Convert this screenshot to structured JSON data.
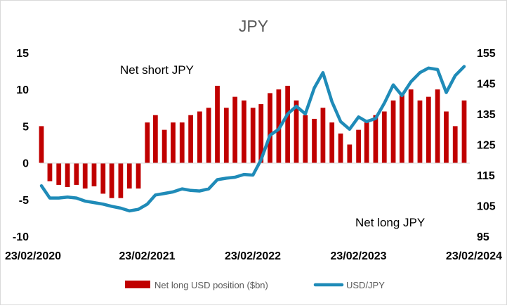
{
  "chart_data": {
    "type": "bar+line",
    "title": "JPY",
    "annotations": [
      "Net short JPY",
      "Net long JPY"
    ],
    "x_tick_labels": [
      "23/02/2020",
      "23/02/2021",
      "23/02/2022",
      "23/02/2023",
      "23/02/2024"
    ],
    "y_left": {
      "ticks": [
        15,
        10,
        5,
        0,
        -5,
        -10
      ],
      "range": [
        -10,
        15
      ]
    },
    "y_right": {
      "ticks": [
        155,
        145,
        135,
        125,
        115,
        105,
        95
      ],
      "range": [
        95,
        155
      ]
    },
    "legend": {
      "position": "bottom",
      "items": [
        "Net long USD position ($bn)",
        "USD/JPY"
      ]
    },
    "colors": {
      "bars": "#C00000",
      "line": "#1F8BB8",
      "title": "#595959"
    },
    "series": [
      {
        "name": "Net long USD position ($bn)",
        "axis": "left",
        "type": "bar",
        "dates": [
          "2020-02",
          "2020-03",
          "2020-04",
          "2020-05",
          "2020-06",
          "2020-07",
          "2020-08",
          "2020-09",
          "2020-10",
          "2020-11",
          "2020-12",
          "2021-01",
          "2021-02",
          "2021-03",
          "2021-04",
          "2021-05",
          "2021-06",
          "2021-07",
          "2021-08",
          "2021-09",
          "2021-10",
          "2021-11",
          "2021-12",
          "2022-01",
          "2022-02",
          "2022-03",
          "2022-04",
          "2022-05",
          "2022-06",
          "2022-07",
          "2022-08",
          "2022-09",
          "2022-10",
          "2022-11",
          "2022-12",
          "2023-01",
          "2023-02",
          "2023-03",
          "2023-04",
          "2023-05",
          "2023-06",
          "2023-07",
          "2023-08",
          "2023-09",
          "2023-10",
          "2023-11",
          "2023-12",
          "2024-01",
          "2024-02"
        ],
        "values": [
          5.0,
          -2.5,
          -3.0,
          -3.3,
          -3.0,
          -3.5,
          -3.2,
          -4.2,
          -4.8,
          -4.8,
          -3.5,
          -3.5,
          5.5,
          6.5,
          4.5,
          5.5,
          5.5,
          6.5,
          7.0,
          7.5,
          10.5,
          7.5,
          9.0,
          8.5,
          7.5,
          8.0,
          9.5,
          10.0,
          10.5,
          8.5,
          6.5,
          6.0,
          7.5,
          5.5,
          4.0,
          2.5,
          4.5,
          5.5,
          6.5,
          7.0,
          8.5,
          9.5,
          10.0,
          8.5,
          9.0,
          10.0,
          7.0,
          5.0,
          8.5
        ]
      },
      {
        "name": "USD/JPY",
        "axis": "right",
        "type": "line",
        "dates": [
          "2020-02",
          "2020-03",
          "2020-04",
          "2020-05",
          "2020-06",
          "2020-07",
          "2020-08",
          "2020-09",
          "2020-10",
          "2020-11",
          "2020-12",
          "2021-01",
          "2021-02",
          "2021-03",
          "2021-04",
          "2021-05",
          "2021-06",
          "2021-07",
          "2021-08",
          "2021-09",
          "2021-10",
          "2021-11",
          "2021-12",
          "2022-01",
          "2022-02",
          "2022-03",
          "2022-04",
          "2022-05",
          "2022-06",
          "2022-07",
          "2022-08",
          "2022-09",
          "2022-10",
          "2022-11",
          "2022-12",
          "2023-01",
          "2023-02",
          "2023-03",
          "2023-04",
          "2023-05",
          "2023-06",
          "2023-07",
          "2023-08",
          "2023-09",
          "2023-10",
          "2023-11",
          "2023-12",
          "2024-01",
          "2024-02"
        ],
        "values": [
          111.5,
          107.5,
          107.5,
          107.8,
          107.5,
          106.5,
          106.0,
          105.5,
          104.8,
          104.2,
          103.3,
          103.8,
          105.5,
          108.5,
          109.0,
          109.5,
          110.5,
          110.0,
          109.8,
          110.5,
          113.5,
          114.0,
          114.3,
          115.2,
          115.0,
          120.0,
          128.0,
          130.0,
          135.0,
          137.5,
          135.0,
          143.5,
          148.5,
          139.0,
          132.5,
          130.0,
          134.0,
          132.5,
          133.5,
          138.5,
          144.5,
          141.0,
          145.5,
          148.5,
          150.0,
          149.5,
          142.0,
          147.5,
          150.5
        ]
      }
    ]
  }
}
